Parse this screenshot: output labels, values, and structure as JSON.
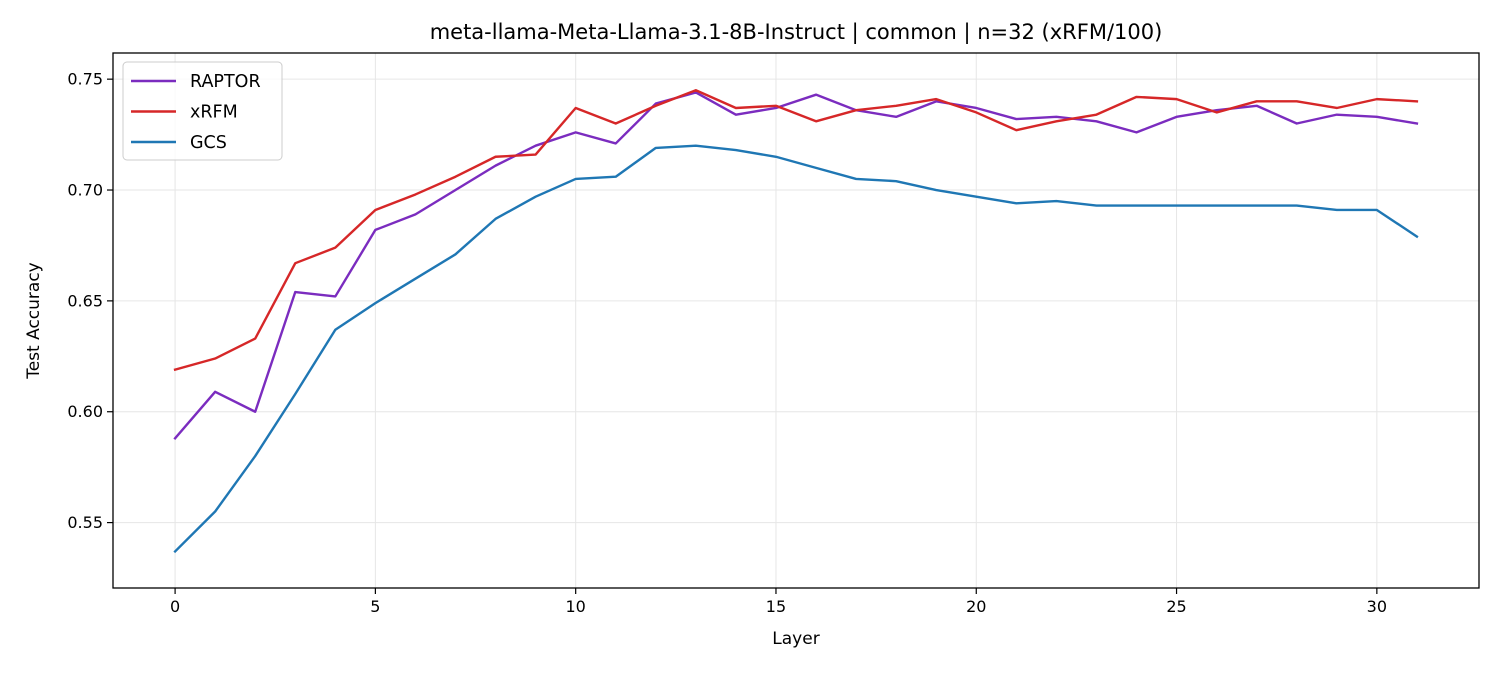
{
  "chart_data": {
    "type": "line",
    "title": "meta-llama-Meta-Llama-3.1-8B-Instruct | common | n=32 (xRFM/100)",
    "xlabel": "Layer",
    "ylabel": "Test Accuracy",
    "xlim": [
      -1.55,
      32.55
    ],
    "ylim": [
      0.5205,
      0.7618
    ],
    "xticks": [
      0,
      5,
      10,
      15,
      20,
      25,
      30
    ],
    "yticks": [
      0.55,
      0.6,
      0.65,
      0.7,
      0.75
    ],
    "ytick_labels": [
      "0.55",
      "0.60",
      "0.65",
      "0.70",
      "0.75"
    ],
    "grid": true,
    "legend_position": "top-left",
    "x": [
      0,
      1,
      2,
      3,
      4,
      5,
      6,
      7,
      8,
      9,
      10,
      11,
      12,
      13,
      14,
      15,
      16,
      17,
      18,
      19,
      20,
      21,
      22,
      23,
      24,
      25,
      26,
      27,
      28,
      29,
      30,
      31
    ],
    "series": [
      {
        "name": "RAPTOR",
        "color": "#7b2cbf",
        "values": [
          0.588,
          0.609,
          0.6,
          0.654,
          0.652,
          0.682,
          0.689,
          0.7,
          0.711,
          0.72,
          0.726,
          0.721,
          0.739,
          0.744,
          0.734,
          0.737,
          0.743,
          0.736,
          0.733,
          0.74,
          0.737,
          0.732,
          0.733,
          0.731,
          0.726,
          0.733,
          0.736,
          0.738,
          0.73,
          0.734,
          0.733,
          0.73
        ]
      },
      {
        "name": "xRFM",
        "color": "#d62728",
        "values": [
          0.619,
          0.624,
          0.633,
          0.667,
          0.674,
          0.691,
          0.698,
          0.706,
          0.715,
          0.716,
          0.737,
          0.73,
          0.738,
          0.745,
          0.737,
          0.738,
          0.731,
          0.736,
          0.738,
          0.741,
          0.735,
          0.727,
          0.731,
          0.734,
          0.742,
          0.741,
          0.735,
          0.74,
          0.74,
          0.737,
          0.741,
          0.74
        ]
      },
      {
        "name": "GCS",
        "color": "#1f77b4",
        "values": [
          0.537,
          0.555,
          0.58,
          0.608,
          0.637,
          0.649,
          0.66,
          0.671,
          0.687,
          0.697,
          0.705,
          0.706,
          0.719,
          0.72,
          0.718,
          0.715,
          0.71,
          0.705,
          0.704,
          0.7,
          0.697,
          0.694,
          0.695,
          0.693,
          0.693,
          0.693,
          0.693,
          0.693,
          0.693,
          0.691,
          0.691,
          0.679
        ]
      }
    ]
  }
}
